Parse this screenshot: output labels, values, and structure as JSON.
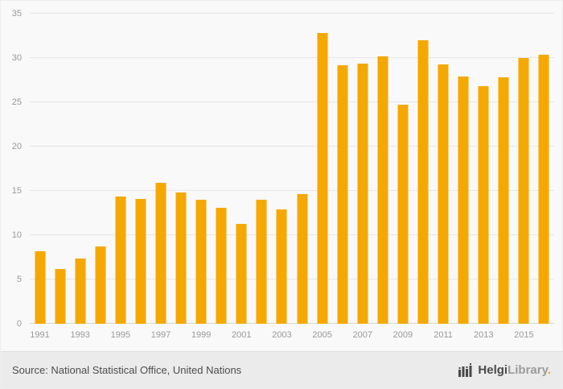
{
  "chart_data": {
    "type": "bar",
    "title": "",
    "xlabel": "",
    "ylabel": "",
    "categories": [
      "1991",
      "1992",
      "1993",
      "1994",
      "1995",
      "1996",
      "1997",
      "1998",
      "1999",
      "2000",
      "2001",
      "2002",
      "2003",
      "2004",
      "2005",
      "2006",
      "2007",
      "2008",
      "2009",
      "2010",
      "2011",
      "2012",
      "2013",
      "2014",
      "2015",
      "2016"
    ],
    "values": [
      8.2,
      6.2,
      7.4,
      8.7,
      14.4,
      14.1,
      15.9,
      14.8,
      14.0,
      13.1,
      11.3,
      14.0,
      12.9,
      14.6,
      32.8,
      29.2,
      29.4,
      30.2,
      24.7,
      32.0,
      29.3,
      27.9,
      26.8,
      27.8,
      30.0,
      30.4
    ],
    "ylim": [
      0,
      35
    ],
    "yticks": [
      0,
      5,
      10,
      15,
      20,
      25,
      30,
      35
    ],
    "x_tick_every": 2,
    "x_tick_labels": [
      "1991",
      "1993",
      "1995",
      "1997",
      "1999",
      "2001",
      "2003",
      "2005",
      "2007",
      "2009",
      "2011",
      "2013",
      "2015"
    ],
    "bar_color": "#f5a800",
    "grid": true,
    "legend_position": "none"
  },
  "footer": {
    "source_text": "Source: National Statistical Office, United Nations",
    "logo_primary": "Helgi",
    "logo_secondary": "Library",
    "logo_dot": "."
  }
}
